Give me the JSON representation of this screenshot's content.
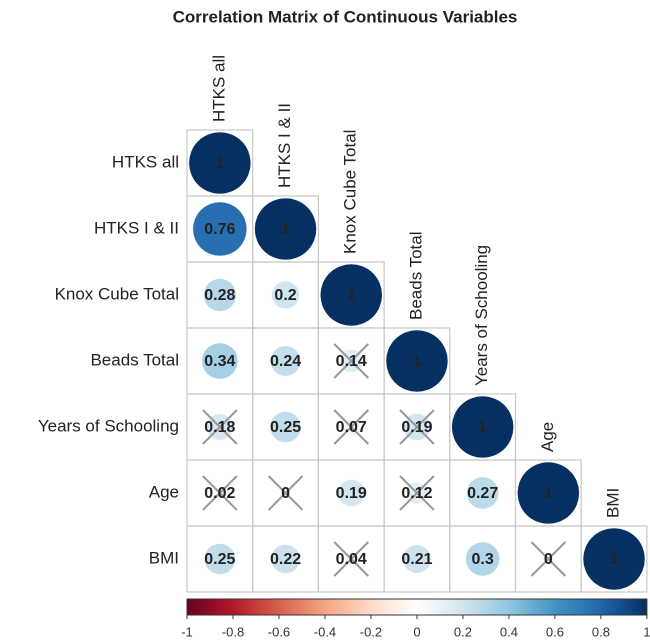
{
  "chart_data": {
    "type": "corrplot",
    "title": "Correlation Matrix of Continuous Variables",
    "variables": [
      "HTKS all",
      "HTKS I & II",
      "Knox Cube Total",
      "Beads Total",
      "Years of Schooling",
      "Age",
      "BMI"
    ],
    "values": [
      [
        1
      ],
      [
        0.76,
        1
      ],
      [
        0.28,
        0.2,
        1
      ],
      [
        0.34,
        0.24,
        0.14,
        1
      ],
      [
        0.18,
        0.25,
        0.07,
        0.19,
        1
      ],
      [
        0.02,
        0,
        0.19,
        0.12,
        0.27,
        1
      ],
      [
        0.25,
        0.22,
        0.04,
        0.21,
        0.3,
        0,
        1
      ]
    ],
    "insignificant": [
      [
        false
      ],
      [
        false,
        false
      ],
      [
        false,
        false,
        false
      ],
      [
        false,
        false,
        true,
        false
      ],
      [
        true,
        false,
        true,
        true,
        false
      ],
      [
        true,
        true,
        false,
        true,
        false,
        false
      ],
      [
        false,
        false,
        true,
        false,
        false,
        true,
        false
      ]
    ],
    "colorscale": [
      "#67001F",
      "#B2182B",
      "#D6604D",
      "#F4A582",
      "#FDDBC7",
      "#FFFFFF",
      "#D1E5F0",
      "#92C5DE",
      "#4393C3",
      "#2166AC",
      "#053061"
    ],
    "clim": [
      -1,
      1
    ],
    "cticks": [
      -1,
      -0.8,
      -0.6,
      -0.4,
      -0.2,
      0,
      0.2,
      0.4,
      0.6,
      0.8,
      1
    ]
  }
}
